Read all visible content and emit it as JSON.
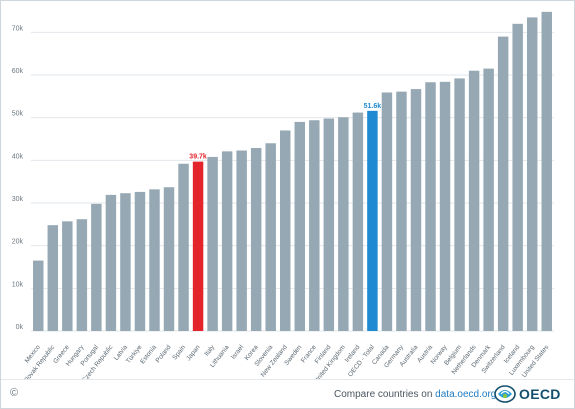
{
  "chart_data": {
    "type": "bar",
    "title": "",
    "xlabel": "",
    "ylabel": "",
    "ylim": [
      0,
      75000
    ],
    "yticks": [
      0,
      10000,
      20000,
      30000,
      40000,
      50000,
      60000,
      70000
    ],
    "ytick_labels": [
      "0k",
      "10k",
      "20k",
      "30k",
      "40k",
      "50k",
      "60k",
      "70k"
    ],
    "grid": true,
    "categories": [
      "Mexico",
      "Slovak Republic",
      "Greece",
      "Hungary",
      "Portugal",
      "Czech Republic",
      "Latvia",
      "Türkiye",
      "Estonia",
      "Poland",
      "Spain",
      "Japan",
      "Italy",
      "Lithuania",
      "Israel",
      "Korea",
      "Slovenia",
      "New Zealand",
      "Sweden",
      "France",
      "Finland",
      "United Kingdom",
      "Ireland",
      "OECD - Total",
      "Canada",
      "Germany",
      "Australia",
      "Austria",
      "Norway",
      "Belgium",
      "Netherlands",
      "Denmark",
      "Switzerland",
      "Iceland",
      "Luxembourg",
      "United States"
    ],
    "values": [
      16500,
      24800,
      25700,
      26200,
      29800,
      31900,
      32300,
      32600,
      33200,
      33700,
      39200,
      39700,
      40800,
      42100,
      42300,
      42900,
      44000,
      47000,
      49000,
      49400,
      49800,
      50100,
      51200,
      51600,
      55900,
      56100,
      56700,
      58300,
      58400,
      59200,
      61000,
      61500,
      69000,
      72000,
      73500,
      74800
    ],
    "bar_color": "#96a8b4",
    "highlights": [
      {
        "category": "Japan",
        "color": "#e3242b",
        "label": "39.7k"
      },
      {
        "category": "OECD - Total",
        "color": "#1f8ad1",
        "label": "51.6k"
      }
    ]
  },
  "footer": {
    "copyright": "©",
    "compare_text": "Compare countries on ",
    "compare_link": "data.oecd.org",
    "logo_text": "OECD"
  },
  "colors": {
    "grid": "#e2e7eb",
    "tick_label": "#6b7780"
  }
}
